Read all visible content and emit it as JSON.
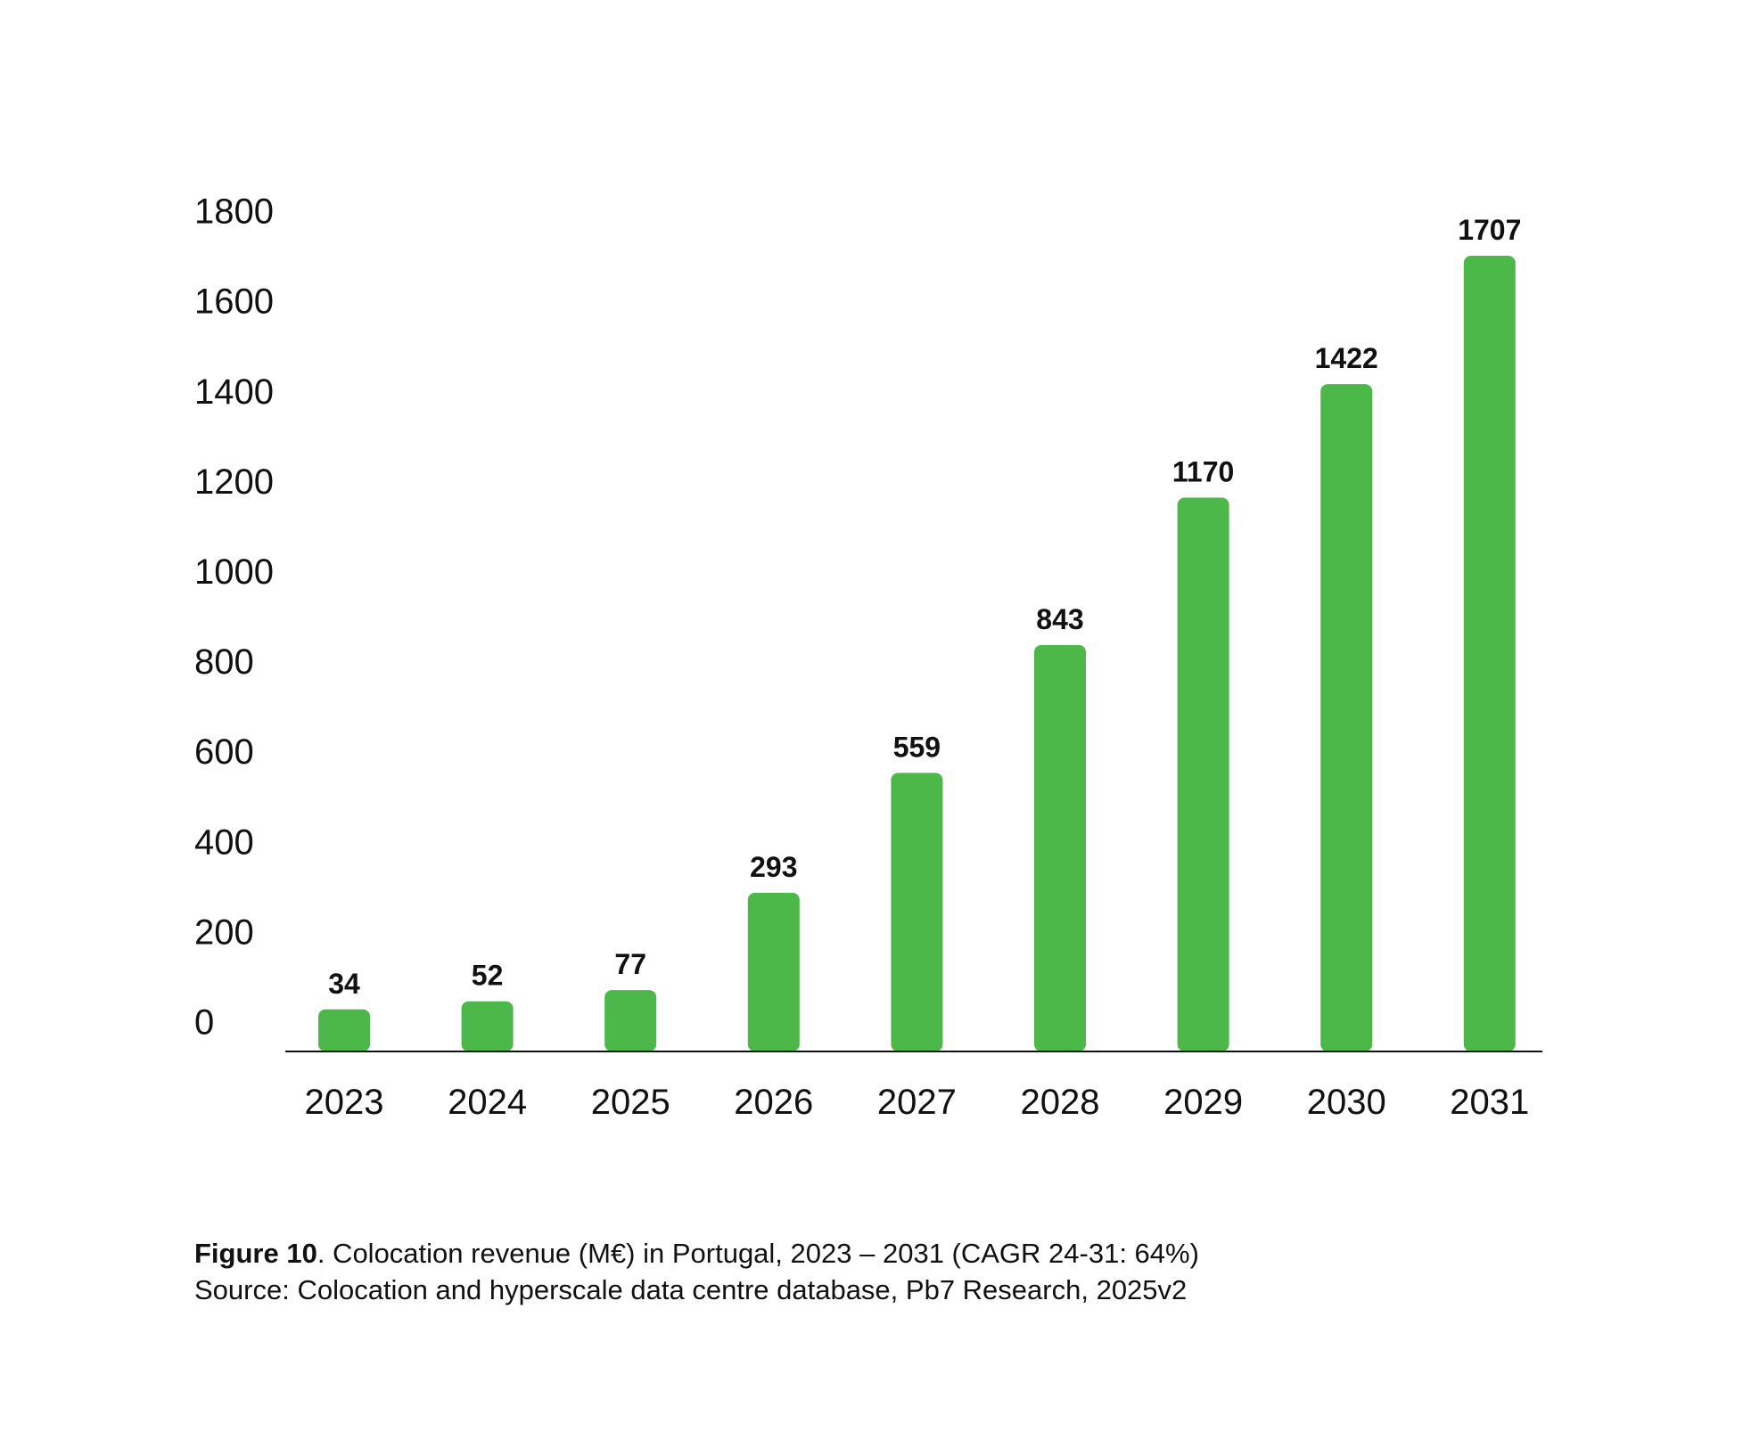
{
  "chart_data": {
    "type": "bar",
    "categories": [
      "2023",
      "2024",
      "2025",
      "2026",
      "2027",
      "2028",
      "2029",
      "2030",
      "2031"
    ],
    "values": [
      34,
      52,
      77,
      293,
      559,
      843,
      1170,
      1422,
      1707
    ],
    "data_labels": [
      "34",
      "52",
      "77",
      "293",
      "559",
      "843",
      "1170",
      "1422",
      "1707"
    ],
    "y_ticks": [
      0,
      200,
      400,
      600,
      800,
      1000,
      1200,
      1400,
      1600,
      1800
    ],
    "ylim": [
      0,
      1800
    ],
    "xlabel": "",
    "ylabel": "",
    "grid": false,
    "legend": "none",
    "bar_color": "#4db84a",
    "axis_color": "#111111"
  },
  "caption": {
    "figure_label": "Figure 10",
    "figure_text": ". Colocation revenue (M€) in Portugal, 2023 – 2031 (CAGR 24-31: 64%)",
    "source_text": "Source: Colocation and hyperscale data centre database, Pb7 Research, 2025v2"
  }
}
